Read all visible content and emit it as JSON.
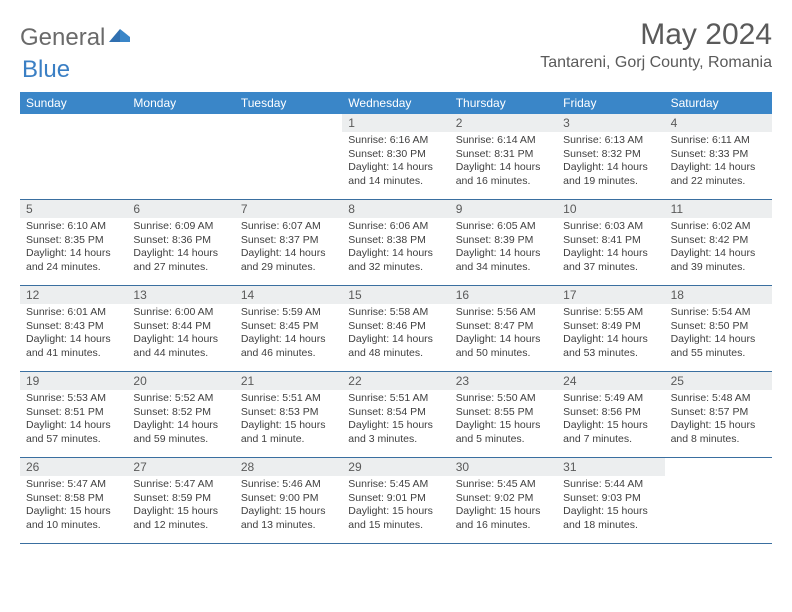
{
  "logo": {
    "part1": "General",
    "part2": "Blue"
  },
  "title": "May 2024",
  "location": "Tantareni, Gorj County, Romania",
  "colors": {
    "header_bg": "#3a86c8",
    "header_text": "#ffffff",
    "daynum_bg": "#eceeef",
    "divider": "#3a6fa0",
    "body_text": "#404040",
    "title_text": "#5a5a5a"
  },
  "daynames": [
    "Sunday",
    "Monday",
    "Tuesday",
    "Wednesday",
    "Thursday",
    "Friday",
    "Saturday"
  ],
  "weeks": [
    [
      null,
      null,
      null,
      {
        "n": "1",
        "sr": "6:16 AM",
        "ss": "8:30 PM",
        "dl": "Daylight: 14 hours and 14 minutes."
      },
      {
        "n": "2",
        "sr": "6:14 AM",
        "ss": "8:31 PM",
        "dl": "Daylight: 14 hours and 16 minutes."
      },
      {
        "n": "3",
        "sr": "6:13 AM",
        "ss": "8:32 PM",
        "dl": "Daylight: 14 hours and 19 minutes."
      },
      {
        "n": "4",
        "sr": "6:11 AM",
        "ss": "8:33 PM",
        "dl": "Daylight: 14 hours and 22 minutes."
      }
    ],
    [
      {
        "n": "5",
        "sr": "6:10 AM",
        "ss": "8:35 PM",
        "dl": "Daylight: 14 hours and 24 minutes."
      },
      {
        "n": "6",
        "sr": "6:09 AM",
        "ss": "8:36 PM",
        "dl": "Daylight: 14 hours and 27 minutes."
      },
      {
        "n": "7",
        "sr": "6:07 AM",
        "ss": "8:37 PM",
        "dl": "Daylight: 14 hours and 29 minutes."
      },
      {
        "n": "8",
        "sr": "6:06 AM",
        "ss": "8:38 PM",
        "dl": "Daylight: 14 hours and 32 minutes."
      },
      {
        "n": "9",
        "sr": "6:05 AM",
        "ss": "8:39 PM",
        "dl": "Daylight: 14 hours and 34 minutes."
      },
      {
        "n": "10",
        "sr": "6:03 AM",
        "ss": "8:41 PM",
        "dl": "Daylight: 14 hours and 37 minutes."
      },
      {
        "n": "11",
        "sr": "6:02 AM",
        "ss": "8:42 PM",
        "dl": "Daylight: 14 hours and 39 minutes."
      }
    ],
    [
      {
        "n": "12",
        "sr": "6:01 AM",
        "ss": "8:43 PM",
        "dl": "Daylight: 14 hours and 41 minutes."
      },
      {
        "n": "13",
        "sr": "6:00 AM",
        "ss": "8:44 PM",
        "dl": "Daylight: 14 hours and 44 minutes."
      },
      {
        "n": "14",
        "sr": "5:59 AM",
        "ss": "8:45 PM",
        "dl": "Daylight: 14 hours and 46 minutes."
      },
      {
        "n": "15",
        "sr": "5:58 AM",
        "ss": "8:46 PM",
        "dl": "Daylight: 14 hours and 48 minutes."
      },
      {
        "n": "16",
        "sr": "5:56 AM",
        "ss": "8:47 PM",
        "dl": "Daylight: 14 hours and 50 minutes."
      },
      {
        "n": "17",
        "sr": "5:55 AM",
        "ss": "8:49 PM",
        "dl": "Daylight: 14 hours and 53 minutes."
      },
      {
        "n": "18",
        "sr": "5:54 AM",
        "ss": "8:50 PM",
        "dl": "Daylight: 14 hours and 55 minutes."
      }
    ],
    [
      {
        "n": "19",
        "sr": "5:53 AM",
        "ss": "8:51 PM",
        "dl": "Daylight: 14 hours and 57 minutes."
      },
      {
        "n": "20",
        "sr": "5:52 AM",
        "ss": "8:52 PM",
        "dl": "Daylight: 14 hours and 59 minutes."
      },
      {
        "n": "21",
        "sr": "5:51 AM",
        "ss": "8:53 PM",
        "dl": "Daylight: 15 hours and 1 minute."
      },
      {
        "n": "22",
        "sr": "5:51 AM",
        "ss": "8:54 PM",
        "dl": "Daylight: 15 hours and 3 minutes."
      },
      {
        "n": "23",
        "sr": "5:50 AM",
        "ss": "8:55 PM",
        "dl": "Daylight: 15 hours and 5 minutes."
      },
      {
        "n": "24",
        "sr": "5:49 AM",
        "ss": "8:56 PM",
        "dl": "Daylight: 15 hours and 7 minutes."
      },
      {
        "n": "25",
        "sr": "5:48 AM",
        "ss": "8:57 PM",
        "dl": "Daylight: 15 hours and 8 minutes."
      }
    ],
    [
      {
        "n": "26",
        "sr": "5:47 AM",
        "ss": "8:58 PM",
        "dl": "Daylight: 15 hours and 10 minutes."
      },
      {
        "n": "27",
        "sr": "5:47 AM",
        "ss": "8:59 PM",
        "dl": "Daylight: 15 hours and 12 minutes."
      },
      {
        "n": "28",
        "sr": "5:46 AM",
        "ss": "9:00 PM",
        "dl": "Daylight: 15 hours and 13 minutes."
      },
      {
        "n": "29",
        "sr": "5:45 AM",
        "ss": "9:01 PM",
        "dl": "Daylight: 15 hours and 15 minutes."
      },
      {
        "n": "30",
        "sr": "5:45 AM",
        "ss": "9:02 PM",
        "dl": "Daylight: 15 hours and 16 minutes."
      },
      {
        "n": "31",
        "sr": "5:44 AM",
        "ss": "9:03 PM",
        "dl": "Daylight: 15 hours and 18 minutes."
      },
      null
    ]
  ],
  "labels": {
    "sunrise_prefix": "Sunrise: ",
    "sunset_prefix": "Sunset: "
  }
}
